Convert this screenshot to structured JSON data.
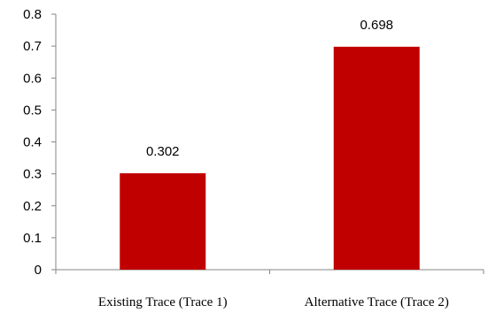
{
  "chart_data": {
    "type": "bar",
    "categories": [
      "Existing Trace (Trace 1)",
      "Alternative Trace (Trace 2)"
    ],
    "values": [
      0.302,
      0.698
    ],
    "data_labels": [
      "0.302",
      "0.698"
    ],
    "yticks": [
      "0",
      "0.1",
      "0.2",
      "0.3",
      "0.4",
      "0.5",
      "0.6",
      "0.7",
      "0.8"
    ],
    "ylim": [
      0,
      0.8
    ],
    "title": "",
    "xlabel": "",
    "ylabel": "",
    "grid": false,
    "bar_color": "#c00000",
    "axis_color": "#868686"
  }
}
